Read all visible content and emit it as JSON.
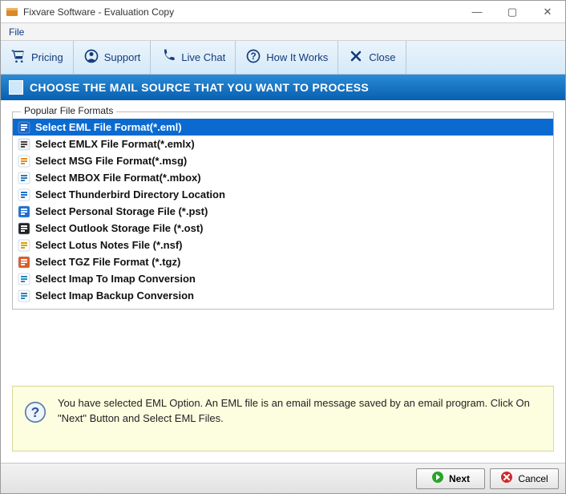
{
  "window": {
    "title": "Fixvare Software - Evaluation Copy"
  },
  "menu": {
    "file": "File"
  },
  "toolbar": {
    "pricing": "Pricing",
    "support": "Support",
    "livechat": "Live Chat",
    "howitworks": "How It Works",
    "close": "Close"
  },
  "section": {
    "title": "CHOOSE THE MAIL SOURCE THAT YOU WANT TO PROCESS"
  },
  "formats": {
    "legend": "Popular File Formats",
    "items": [
      {
        "label": "Select EML File Format(*.eml)",
        "selected": true,
        "icon_color": "#ffffff",
        "icon_bg": "#2267c9"
      },
      {
        "label": "Select EMLX File Format(*.emlx)",
        "selected": false,
        "icon_color": "#444444",
        "icon_bg": "#f0f0f0"
      },
      {
        "label": "Select MSG File Format(*.msg)",
        "selected": false,
        "icon_color": "#e88b1a",
        "icon_bg": "#ffffff"
      },
      {
        "label": "Select MBOX File Format(*.mbox)",
        "selected": false,
        "icon_color": "#2a7db8",
        "icon_bg": "#ffffff"
      },
      {
        "label": "Select Thunderbird Directory Location",
        "selected": false,
        "icon_color": "#1f72c9",
        "icon_bg": "#ffffff"
      },
      {
        "label": "Select Personal Storage File (*.pst)",
        "selected": false,
        "icon_color": "#ffffff",
        "icon_bg": "#1f6fd0"
      },
      {
        "label": "Select Outlook Storage File (*.ost)",
        "selected": false,
        "icon_color": "#ffffff",
        "icon_bg": "#222222"
      },
      {
        "label": "Select Lotus Notes File (*.nsf)",
        "selected": false,
        "icon_color": "#d9a400",
        "icon_bg": "#ffffff"
      },
      {
        "label": "Select TGZ File Format (*.tgz)",
        "selected": false,
        "icon_color": "#ffffff",
        "icon_bg": "#e05a1f"
      },
      {
        "label": "Select Imap To Imap Conversion",
        "selected": false,
        "icon_color": "#2a88c0",
        "icon_bg": "#ffffff"
      },
      {
        "label": "Select Imap Backup Conversion",
        "selected": false,
        "icon_color": "#2a88c0",
        "icon_bg": "#ffffff"
      }
    ]
  },
  "hint": {
    "text": "You have selected EML Option. An EML file is an email message saved by an email program. Click On \"Next\" Button and Select EML Files."
  },
  "footer": {
    "next": "Next",
    "cancel": "Cancel"
  },
  "colors": {
    "accent": "#0a6ad0",
    "toolbar_text": "#133a7a",
    "header_grad_top": "#2a8bd6",
    "header_grad_bottom": "#0a5fb0",
    "hint_bg": "#fdfde0",
    "hint_border": "#d8d89a",
    "next_icon": "#28a428",
    "cancel_icon": "#cc2b2b"
  }
}
